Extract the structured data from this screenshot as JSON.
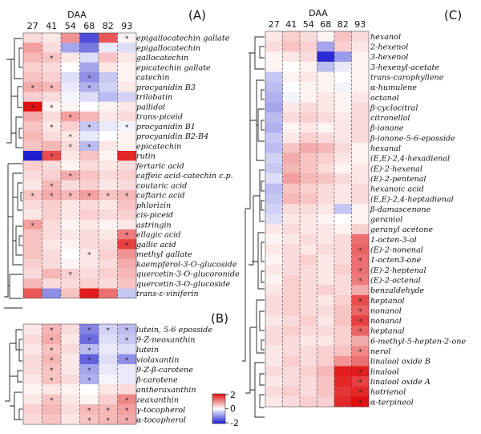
{
  "chart_data": {
    "type": "heatmap",
    "columns_title": "DAA",
    "columns": [
      "27",
      "41",
      "54",
      "68",
      "82",
      "93"
    ],
    "colorbar": {
      "min": -2,
      "max": 2,
      "ticks": [
        "2",
        "0",
        "-2"
      ],
      "low_color": "#1f1fd0",
      "mid_color": "#ffffff",
      "high_color": "#e01010"
    },
    "panels": [
      {
        "label": "(A)",
        "rows": [
          "epigallocatechin gallate",
          "epigallocatechin",
          "gallocatechin",
          "epicatechin gallate",
          "catechin",
          "procyanidin B3",
          "trilobatin",
          "pallidol",
          "trans-piceid",
          "procyanidin B1",
          "procyanidin B2-B4",
          "epicatechin",
          "rutin",
          "fertaric acid",
          "caffeic acid-catechin c.p.",
          "coutaric acid",
          "caftaric acid",
          "phlorizin",
          "cis-piceid",
          "astringin",
          "ellagic acid",
          "gallic acid",
          "methyl gallate",
          "kaempferol-3-O-glucoside",
          "quercetin-3-O-glucoronide",
          "quercetin-3-O-glucoside",
          "trans-ε-viniferin"
        ],
        "values": [
          [
            0.3,
            0.2,
            0.9,
            -1.6,
            1.4,
            0.1
          ],
          [
            0.8,
            0.3,
            -0.8,
            -1.2,
            -0.2,
            -0.3
          ],
          [
            0.6,
            0.5,
            0.2,
            -0.3,
            0.5,
            0.2
          ],
          [
            0.4,
            0.3,
            0.0,
            -0.8,
            0.2,
            0.1
          ],
          [
            0.5,
            0.4,
            -0.3,
            -1.0,
            -0.5,
            0.1
          ],
          [
            0.7,
            0.6,
            -0.2,
            -0.7,
            -0.4,
            0.2
          ],
          [
            0.4,
            0.3,
            -0.1,
            -0.3,
            -0.6,
            -0.4
          ],
          [
            2.0,
            0.1,
            0.1,
            0.0,
            0.1,
            0.2
          ],
          [
            0.7,
            0.3,
            0.8,
            0.6,
            0.2,
            0.3
          ],
          [
            0.5,
            0.2,
            0.4,
            -0.5,
            -0.2,
            -0.1
          ],
          [
            0.6,
            0.3,
            0.2,
            -0.2,
            0.0,
            0.1
          ],
          [
            0.5,
            0.6,
            0.3,
            -0.6,
            0.2,
            0.1
          ],
          [
            -2.0,
            1.5,
            0.2,
            0.5,
            0.1,
            1.8
          ],
          [
            0.4,
            0.3,
            0.1,
            0.3,
            0.2,
            0.3
          ],
          [
            0.3,
            0.4,
            0.7,
            0.5,
            0.3,
            0.4
          ],
          [
            0.2,
            0.6,
            0.3,
            0.4,
            0.2,
            0.3
          ],
          [
            0.5,
            0.7,
            0.6,
            0.8,
            0.5,
            0.6
          ],
          [
            0.3,
            0.4,
            0.2,
            0.3,
            0.2,
            0.5
          ],
          [
            0.2,
            0.4,
            0.2,
            0.4,
            0.3,
            0.4
          ],
          [
            0.8,
            0.3,
            0.1,
            0.2,
            0.1,
            0.2
          ],
          [
            0.5,
            0.3,
            0.2,
            0.3,
            0.2,
            1.1
          ],
          [
            0.5,
            0.2,
            0.1,
            0.3,
            0.3,
            1.6
          ],
          [
            0.5,
            0.3,
            0.0,
            0.2,
            0.4,
            0.9
          ],
          [
            0.4,
            0.3,
            0.1,
            0.2,
            0.3,
            0.7
          ],
          [
            0.3,
            0.6,
            0.4,
            0.3,
            0.4,
            0.6
          ],
          [
            0.6,
            0.3,
            0.3,
            0.4,
            0.3,
            0.5
          ],
          [
            1.4,
            -1.0,
            0.5,
            1.9,
            1.2,
            -0.5
          ]
        ],
        "significant": [
          [
            0,
            5
          ],
          [
            2,
            1
          ],
          [
            4,
            3
          ],
          [
            5,
            0
          ],
          [
            5,
            1
          ],
          [
            5,
            3
          ],
          [
            7,
            0
          ],
          [
            7,
            1
          ],
          [
            8,
            2
          ],
          [
            9,
            1
          ],
          [
            9,
            3
          ],
          [
            9,
            5
          ],
          [
            10,
            2
          ],
          [
            11,
            2
          ],
          [
            11,
            3
          ],
          [
            12,
            1
          ],
          [
            14,
            2
          ],
          [
            15,
            1
          ],
          [
            16,
            0
          ],
          [
            16,
            1
          ],
          [
            16,
            2
          ],
          [
            16,
            3
          ],
          [
            16,
            4
          ],
          [
            16,
            5
          ],
          [
            19,
            0
          ],
          [
            20,
            5
          ],
          [
            21,
            5
          ],
          [
            22,
            3
          ],
          [
            24,
            2
          ]
        ]
      },
      {
        "label": "(B)",
        "rows": [
          "lutein, 5-6 eposside",
          "9-Z-neoxanthin",
          "lutein",
          "violaxantin",
          "9-Z-β-carotene",
          "β-carotene",
          "antheraxanthin",
          "zeaxanthin",
          "γ-tocopherol",
          "α-tocopherol"
        ],
        "values": [
          [
            0.2,
            0.6,
            0.3,
            -1.1,
            -0.4,
            -0.6
          ],
          [
            0.3,
            0.7,
            0.2,
            -1.3,
            -0.3,
            -0.5
          ],
          [
            0.2,
            0.5,
            0.3,
            -0.6,
            -0.2,
            -0.3
          ],
          [
            0.3,
            0.6,
            0.2,
            -1.4,
            -0.3,
            -1.0
          ],
          [
            0.3,
            0.5,
            0.2,
            -0.8,
            -0.2,
            -0.2
          ],
          [
            0.2,
            0.5,
            0.3,
            -0.7,
            -0.1,
            -0.2
          ],
          [
            0.1,
            0.2,
            0.1,
            0.0,
            0.2,
            0.3
          ],
          [
            0.2,
            0.5,
            0.2,
            0.1,
            0.4,
            1.0
          ],
          [
            0.4,
            0.6,
            0.3,
            0.6,
            0.6,
            0.8
          ],
          [
            0.3,
            0.5,
            0.2,
            0.5,
            0.6,
            0.7
          ]
        ],
        "significant": [
          [
            0,
            1
          ],
          [
            0,
            3
          ],
          [
            0,
            4
          ],
          [
            0,
            5
          ],
          [
            1,
            1
          ],
          [
            1,
            3
          ],
          [
            1,
            5
          ],
          [
            2,
            1
          ],
          [
            2,
            3
          ],
          [
            3,
            1
          ],
          [
            3,
            3
          ],
          [
            3,
            5
          ],
          [
            4,
            1
          ],
          [
            4,
            3
          ],
          [
            5,
            1
          ],
          [
            5,
            3
          ],
          [
            7,
            1
          ],
          [
            7,
            5
          ],
          [
            8,
            3
          ],
          [
            8,
            4
          ],
          [
            8,
            5
          ],
          [
            9,
            3
          ],
          [
            9,
            4
          ],
          [
            9,
            5
          ]
        ]
      },
      {
        "label": "(C)",
        "rows": [
          "hexanol",
          "2-hexenol",
          "3-hexenol",
          "3-hexenyl-acetate",
          "trans-carophyllene",
          "α-humulene",
          "octanol",
          "β-cyclocitral",
          "citronellol",
          "β-ionone",
          "β-ionone-5-6-eposside",
          "hexanal",
          "(E,E)-2,4-hexadienal",
          "(E)-2-hexenal",
          "(E)-2-pentenal",
          "hexanoic acid",
          "(E,E)-2,4-heptadienal",
          "β-damascenone",
          "geraniol",
          "geranyl acetone",
          "1-octen-3-ol",
          "(E)-2-nonenal",
          "1-octen3-one",
          "(E)-2-heptenal",
          "(E)-2-octenal",
          "benzaldehyde",
          "heptanol",
          "nonanol",
          "nonanal",
          "heptanal",
          "6-methyl-5-hepten-2-one",
          "nerol",
          "linalool oxide B",
          "linalool",
          "linalool oxide A",
          "hotrienol",
          "α-terpineol"
        ],
        "values": [
          [
            0.2,
            0.4,
            0.3,
            0.1,
            0.5,
            0.3
          ],
          [
            0.3,
            0.5,
            0.4,
            -0.8,
            0.4,
            0.2
          ],
          [
            0.1,
            0.2,
            0.3,
            -1.9,
            -0.9,
            0.1
          ],
          [
            0.1,
            0.0,
            0.1,
            -0.6,
            -0.2,
            0.1
          ],
          [
            -0.5,
            0.1,
            0.2,
            0.1,
            0.0,
            0.1
          ],
          [
            -0.6,
            0.0,
            0.1,
            0.1,
            -0.1,
            0.1
          ],
          [
            -0.7,
            -0.1,
            0.1,
            0.2,
            0.1,
            0.2
          ],
          [
            -0.8,
            0.2,
            0.3,
            0.2,
            0.1,
            0.3
          ],
          [
            -0.6,
            0.3,
            0.4,
            0.3,
            0.2,
            0.3
          ],
          [
            -0.7,
            0.1,
            0.2,
            0.1,
            0.2,
            0.3
          ],
          [
            -0.5,
            0.2,
            0.4,
            0.3,
            0.2,
            0.3
          ],
          [
            -0.6,
            0.5,
            0.7,
            0.6,
            0.3,
            0.1
          ],
          [
            -0.4,
            0.7,
            0.5,
            0.4,
            0.2,
            0.1
          ],
          [
            -0.5,
            0.6,
            0.5,
            0.3,
            0.1,
            0.2
          ],
          [
            -0.3,
            0.8,
            0.6,
            0.5,
            0.3,
            0.2
          ],
          [
            -0.6,
            0.5,
            0.4,
            0.3,
            0.2,
            0.3
          ],
          [
            -0.5,
            0.6,
            0.5,
            0.3,
            0.2,
            0.3
          ],
          [
            -0.4,
            0.3,
            0.3,
            0.2,
            -0.5,
            0.1
          ],
          [
            -0.3,
            0.2,
            0.2,
            0.1,
            0.0,
            0.1
          ],
          [
            0.2,
            0.3,
            0.2,
            0.2,
            0.1,
            0.4
          ],
          [
            0.1,
            0.2,
            0.3,
            0.2,
            0.3,
            1.2
          ],
          [
            0.2,
            0.3,
            0.2,
            0.3,
            0.3,
            1.3
          ],
          [
            0.1,
            0.3,
            0.4,
            0.2,
            0.3,
            1.2
          ],
          [
            0.2,
            0.3,
            0.3,
            0.2,
            0.4,
            1.2
          ],
          [
            0.1,
            0.4,
            0.3,
            0.2,
            0.3,
            1.1
          ],
          [
            0.2,
            0.4,
            0.3,
            0.4,
            0.3,
            0.7
          ],
          [
            0.3,
            0.4,
            0.3,
            0.2,
            0.4,
            1.5
          ],
          [
            0.3,
            0.4,
            0.3,
            0.3,
            0.5,
            1.3
          ],
          [
            0.2,
            0.3,
            0.4,
            0.2,
            0.5,
            1.6
          ],
          [
            0.3,
            0.4,
            0.3,
            0.3,
            0.4,
            1.3
          ],
          [
            0.3,
            0.3,
            0.2,
            0.2,
            0.4,
            0.7
          ],
          [
            0.2,
            0.3,
            0.3,
            0.4,
            0.5,
            1.0
          ],
          [
            0.2,
            0.4,
            0.3,
            0.4,
            0.9,
            1.2
          ],
          [
            0.3,
            0.3,
            0.4,
            0.6,
            1.9,
            1.9
          ],
          [
            0.2,
            0.3,
            0.3,
            0.5,
            1.8,
            1.6
          ],
          [
            0.3,
            0.4,
            0.3,
            0.5,
            1.7,
            1.8
          ],
          [
            0.2,
            0.3,
            0.4,
            0.4,
            1.8,
            2.0
          ]
        ],
        "significant": [
          [
            21,
            5
          ],
          [
            22,
            5
          ],
          [
            23,
            5
          ],
          [
            24,
            5
          ],
          [
            26,
            5
          ],
          [
            27,
            5
          ],
          [
            28,
            5
          ],
          [
            29,
            5
          ],
          [
            31,
            5
          ],
          [
            33,
            5
          ],
          [
            34,
            5
          ],
          [
            35,
            5
          ],
          [
            36,
            5
          ]
        ]
      }
    ]
  }
}
